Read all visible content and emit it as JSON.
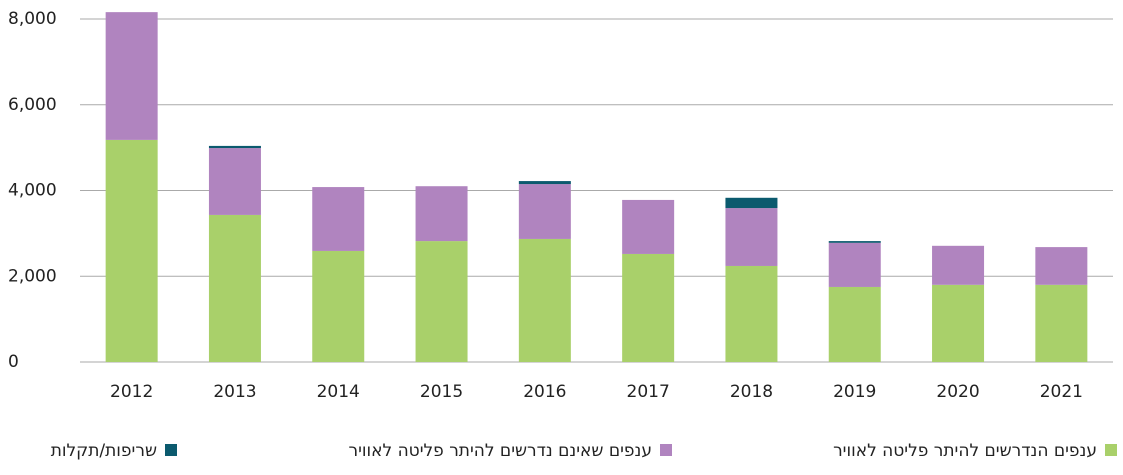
{
  "chart_data": {
    "type": "stacked_bar",
    "categories": [
      "2012",
      "2013",
      "2014",
      "2015",
      "2016",
      "2017",
      "2018",
      "2019",
      "2020",
      "2021"
    ],
    "series": [
      {
        "name": "ענפים הנדרשים להיתר פליטה לאוויר",
        "color": "#a9d06a",
        "values": [
          5180,
          3430,
          2590,
          2820,
          2870,
          2520,
          2240,
          1750,
          1800,
          1800
        ]
      },
      {
        "name": "ענפים שאינם נדרשים להיתר פליטה לאוויר",
        "color": "#b084bf",
        "values": [
          2980,
          1560,
          1490,
          1280,
          1280,
          1260,
          1350,
          1030,
          910,
          880
        ]
      },
      {
        "name": "שריפות/תקלות",
        "color": "#0b5a6e",
        "values": [
          0,
          50,
          0,
          0,
          70,
          0,
          240,
          40,
          0,
          0
        ]
      }
    ],
    "ylim": [
      0,
      8000
    ],
    "yticks": [
      0,
      {
        "value": 2000,
        "label": "2,000"
      },
      {
        "value": 4000,
        "label": "4,000"
      },
      {
        "value": 6000,
        "label": "6,000"
      },
      {
        "value": 8000,
        "label": "8,000"
      }
    ],
    "grid": true,
    "legend": "bottom"
  }
}
